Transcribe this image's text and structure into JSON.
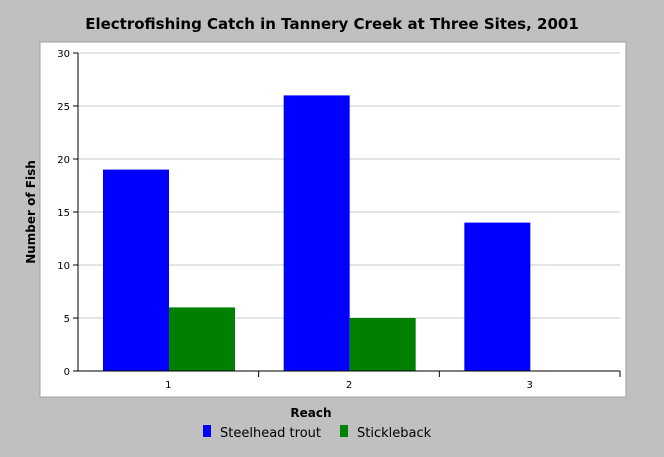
{
  "chart_data": {
    "type": "bar",
    "title": "Electrofishing Catch in Tannery Creek at Three Sites, 2001",
    "xlabel": "Reach",
    "ylabel": "Number of Fish",
    "categories": [
      "1",
      "2",
      "3"
    ],
    "series": [
      {
        "name": "Steelhead trout",
        "color": "#0000ff",
        "values": [
          19,
          26,
          14
        ]
      },
      {
        "name": "Stickleback",
        "color": "#008000",
        "values": [
          6,
          5,
          0
        ]
      }
    ],
    "ylim": [
      0,
      30
    ],
    "yticks": [
      "0",
      "5",
      "10",
      "15",
      "20",
      "25",
      "30"
    ],
    "grid": true,
    "legend_position": "bottom"
  }
}
